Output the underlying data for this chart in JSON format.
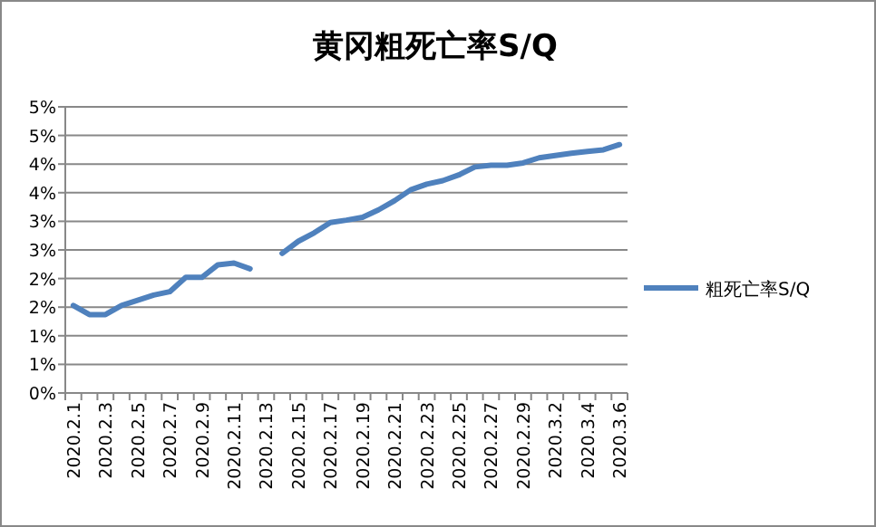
{
  "chart_data": {
    "type": "line",
    "title": "黄冈粗死亡率S/Q",
    "categories": [
      "2020.2.1",
      null,
      "2020.2.3",
      null,
      "2020.2.5",
      null,
      "2020.2.7",
      null,
      "2020.2.9",
      null,
      "2020.2.11",
      null,
      "2020.2.13",
      null,
      "2020.2.15",
      null,
      "2020.2.17",
      null,
      "2020.2.19",
      null,
      "2020.2.21",
      null,
      "2020.2.23",
      null,
      "2020.2.25",
      null,
      "2020.2.27",
      null,
      "2020.2.29",
      null,
      "2020.3.2",
      null,
      "2020.3.4",
      null,
      "2020.3.6"
    ],
    "series": [
      {
        "name": "粗死亡率S/Q",
        "color": "#4f81bd",
        "values": [
          1.53,
          1.37,
          1.37,
          1.53,
          1.62,
          1.71,
          1.77,
          2.02,
          2.02,
          2.24,
          2.27,
          2.17,
          null,
          2.44,
          2.65,
          2.8,
          2.98,
          3.02,
          3.07,
          3.2,
          3.36,
          3.55,
          3.65,
          3.71,
          3.81,
          3.95,
          3.98,
          3.98,
          4.02,
          4.11,
          4.15,
          4.19,
          4.22,
          4.25,
          4.34
        ]
      }
    ],
    "ylim": [
      0,
      5
    ],
    "yticks": [
      {
        "value": 0,
        "label": "0%"
      },
      {
        "value": 0.5,
        "label": "1%"
      },
      {
        "value": 1,
        "label": "1%"
      },
      {
        "value": 1.5,
        "label": "2%"
      },
      {
        "value": 2,
        "label": "2%"
      },
      {
        "value": 2.5,
        "label": "3%"
      },
      {
        "value": 3,
        "label": "3%"
      },
      {
        "value": 3.5,
        "label": "4%"
      },
      {
        "value": 4,
        "label": "4%"
      },
      {
        "value": 4.5,
        "label": "5%"
      },
      {
        "value": 5,
        "label": "5%"
      }
    ],
    "grid": "y",
    "legend": "right",
    "marker": "none",
    "line_style": "solid"
  }
}
